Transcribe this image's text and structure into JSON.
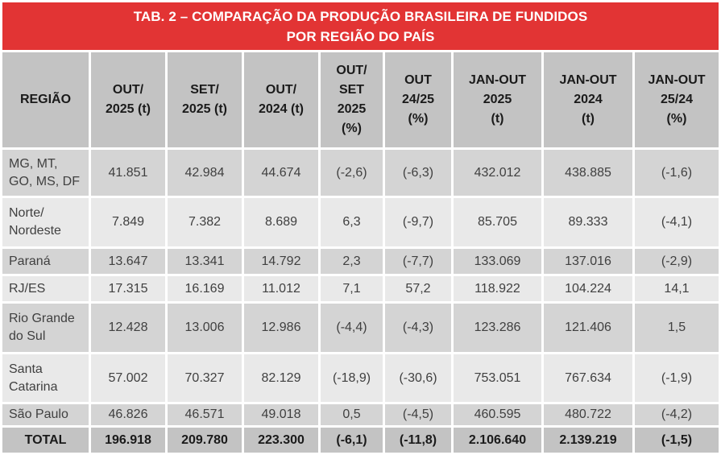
{
  "title": {
    "line1": "TAB. 2 – COMPARAÇÃO DA PRODUÇÃO BRASILEIRA DE FUNDIDOS",
    "line2": "POR REGIÃO DO PAÍS"
  },
  "colors": {
    "title_bg": "#e23434",
    "title_text": "#ffffff",
    "header_bg": "#c3c3c3",
    "row_dark": "#d4d4d4",
    "row_light": "#e9e9e9",
    "total_bg": "#c3c3c3",
    "grid": "#ffffff",
    "text": "#404040",
    "strong_text": "#1a1a1a"
  },
  "table": {
    "columns": [
      "REGIÃO",
      "OUT/\n2025 (t)",
      "SET/\n2025 (t)",
      "OUT/\n2024 (t)",
      "OUT/\nSET\n2025\n(%)",
      "OUT\n24/25\n(%)",
      "JAN-OUT\n2025\n(t)",
      "JAN-OUT\n2024\n(t)",
      "JAN-OUT\n25/24\n(%)"
    ],
    "rows": [
      {
        "region": "MG, MT,\nGO, MS, DF",
        "values": [
          "41.851",
          "42.984",
          "44.674",
          "(-2,6)",
          "(-6,3)",
          "432.012",
          "438.885",
          "(-1,6)"
        ]
      },
      {
        "region": "Norte/\nNordeste",
        "values": [
          "7.849",
          "7.382",
          "8.689",
          "6,3",
          "(-9,7)",
          "85.705",
          "89.333",
          "(-4,1)"
        ]
      },
      {
        "region": "Paraná",
        "values": [
          "13.647",
          "13.341",
          "14.792",
          "2,3",
          "(-7,7)",
          "133.069",
          "137.016",
          "(-2,9)"
        ]
      },
      {
        "region": "RJ/ES",
        "values": [
          "17.315",
          "16.169",
          "11.012",
          "7,1",
          "57,2",
          "118.922",
          "104.224",
          "14,1"
        ]
      },
      {
        "region": "Rio Grande\ndo Sul",
        "values": [
          "12.428",
          "13.006",
          "12.986",
          "(-4,4)",
          "(-4,3)",
          "123.286",
          "121.406",
          "1,5"
        ]
      },
      {
        "region": "Santa\nCatarina",
        "values": [
          "57.002",
          "70.327",
          "82.129",
          "(-18,9)",
          "(-30,6)",
          "753.051",
          "767.634",
          "(-1,9)"
        ]
      },
      {
        "region": "São Paulo",
        "values": [
          "46.826",
          "46.571",
          "49.018",
          "0,5",
          "(-4,5)",
          "460.595",
          "480.722",
          "(-4,2)"
        ]
      }
    ],
    "total": {
      "region": "TOTAL",
      "values": [
        "196.918",
        "209.780",
        "223.300",
        "(-6,1)",
        "(-11,8)",
        "2.106.640",
        "2.139.219",
        "(-1,5)"
      ]
    }
  }
}
